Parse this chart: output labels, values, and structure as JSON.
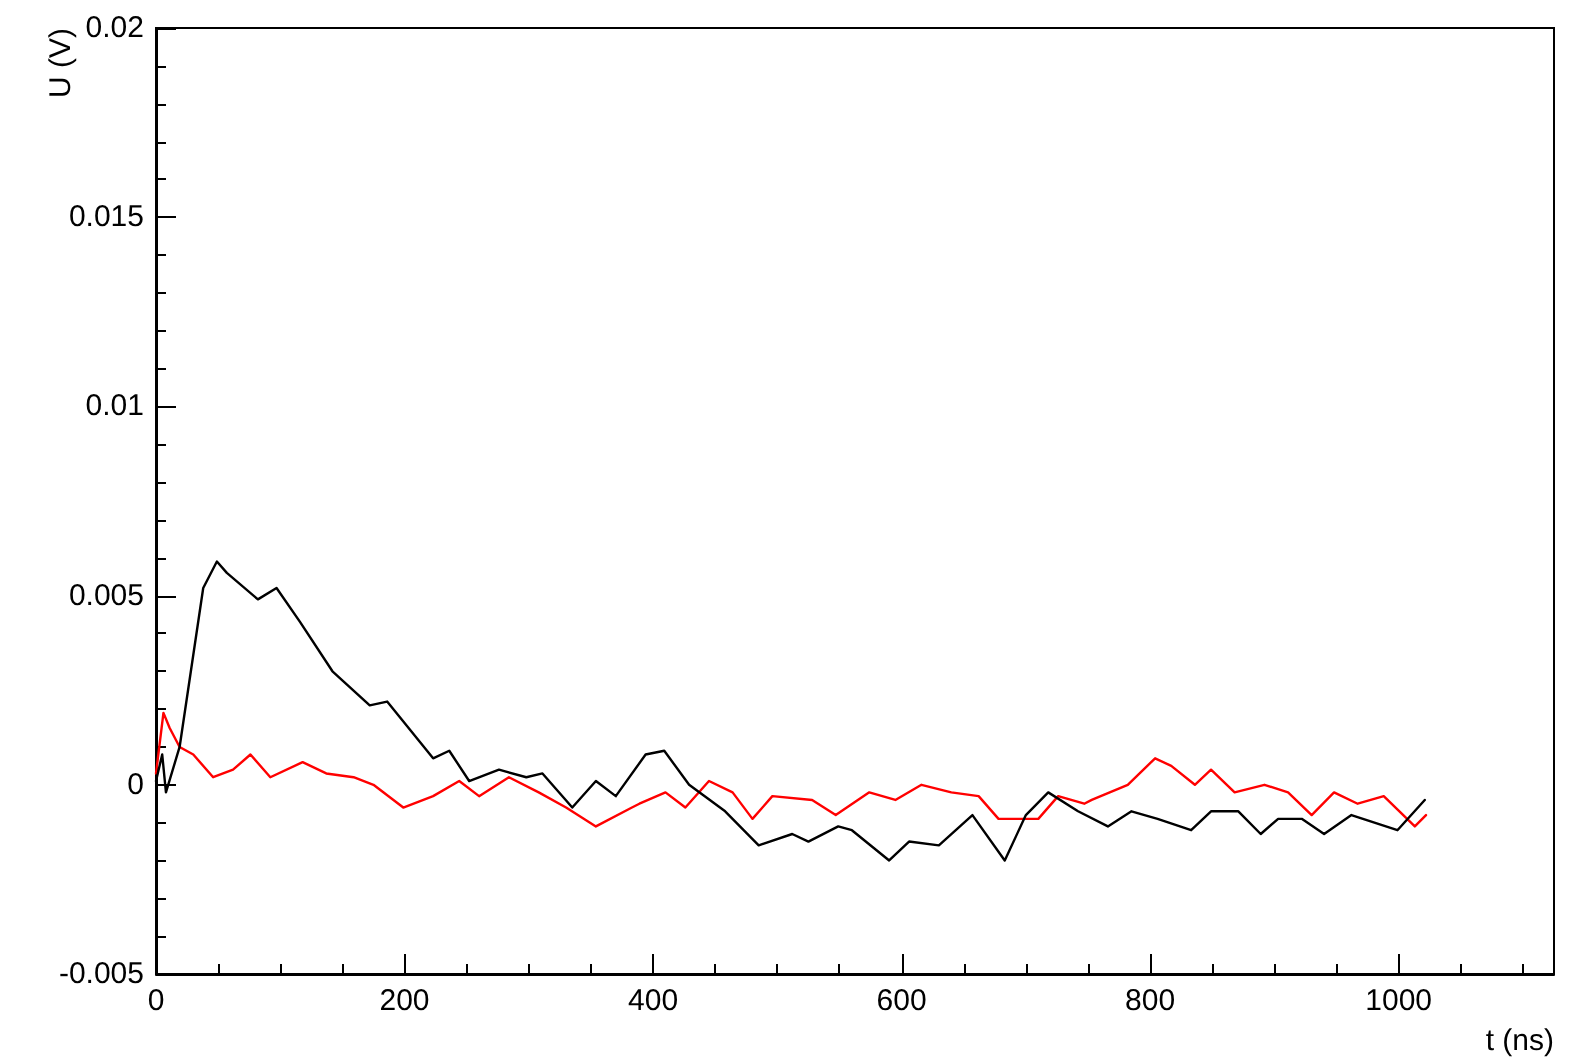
{
  "chart_data": {
    "type": "line",
    "xlabel": "t (ns)",
    "ylabel": "U (V)",
    "xlim": [
      0,
      1125
    ],
    "xticks": [
      0,
      200,
      400,
      600,
      800,
      1000
    ],
    "ylim": [
      -0.005,
      0.02
    ],
    "yticks": [
      -0.005,
      0,
      0.005,
      0.01,
      0.015,
      0.02
    ],
    "grid": false,
    "marker": "none",
    "line_style": "solid",
    "series": [
      {
        "color": "#000000",
        "x": [
          0,
          5,
          8,
          19,
          38,
          49,
          57,
          82,
          97,
          116,
          142,
          172,
          186,
          223,
          236,
          252,
          276,
          298,
          311,
          335,
          354,
          370,
          394,
          409,
          429,
          458,
          485,
          512,
          525,
          549,
          560,
          590,
          606,
          630,
          657,
          683,
          700,
          718,
          742,
          766,
          785,
          806,
          833,
          849,
          871,
          889,
          903,
          922,
          940,
          962,
          999,
          1021
        ],
        "values": [
          0.0001,
          0.0008,
          -0.0002,
          0.001,
          0.0052,
          0.0059,
          0.0056,
          0.0049,
          0.0052,
          0.0043,
          0.003,
          0.0021,
          0.0022,
          0.0007,
          0.0009,
          0.0001,
          0.0004,
          0.0002,
          0.0003,
          -0.0006,
          0.0001,
          -0.0003,
          0.0008,
          0.0009,
          0.0,
          -0.0007,
          -0.0016,
          -0.0013,
          -0.0015,
          -0.0011,
          -0.0012,
          -0.002,
          -0.0015,
          -0.0016,
          -0.0008,
          -0.002,
          -0.0008,
          -0.0002,
          -0.0007,
          -0.0011,
          -0.0007,
          -0.0009,
          -0.0012,
          -0.0007,
          -0.0007,
          -0.0013,
          -0.0009,
          -0.0009,
          -0.0013,
          -0.0008,
          -0.0012,
          -0.0004
        ]
      },
      {
        "color": "#ff0000",
        "x": [
          0,
          6,
          11,
          19,
          30,
          46,
          62,
          76,
          92,
          118,
          137,
          159,
          175,
          199,
          223,
          244,
          260,
          284,
          308,
          330,
          354,
          383,
          389,
          410,
          426,
          445,
          464,
          480,
          496,
          528,
          547,
          574,
          595,
          616,
          640,
          662,
          678,
          710,
          726,
          747,
          753,
          782,
          804,
          817,
          836,
          849,
          868,
          892,
          911,
          930,
          948,
          967,
          988,
          1013,
          1022
        ],
        "values": [
          0.0003,
          0.0019,
          0.0015,
          0.001,
          0.0008,
          0.0002,
          0.0004,
          0.0008,
          0.0002,
          0.0006,
          0.0003,
          0.0002,
          0.0,
          -0.0006,
          -0.0003,
          0.0001,
          -0.0003,
          0.0002,
          -0.0002,
          -0.0006,
          -0.0011,
          -0.0006,
          -0.0005,
          -0.0002,
          -0.0006,
          0.0001,
          -0.0002,
          -0.0009,
          -0.0003,
          -0.0004,
          -0.0008,
          -0.0002,
          -0.0004,
          0.0,
          -0.0002,
          -0.0003,
          -0.0009,
          -0.0009,
          -0.0003,
          -0.0005,
          -0.0004,
          0.0,
          0.0007,
          0.0005,
          0.0,
          0.0004,
          -0.0002,
          0.0,
          -0.0002,
          -0.0008,
          -0.0002,
          -0.0005,
          -0.0003,
          -0.0011,
          -0.0008
        ]
      }
    ]
  }
}
